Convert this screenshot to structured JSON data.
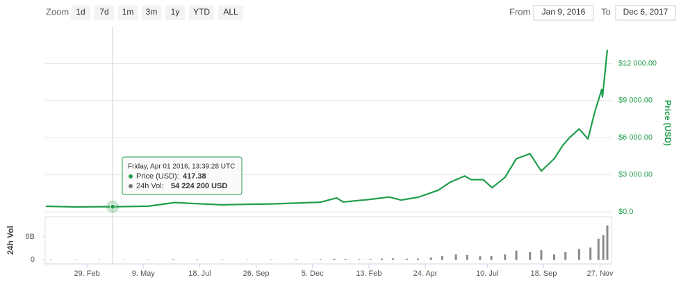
{
  "toolbar": {
    "zoom_label": "Zoom",
    "buttons": [
      "1d",
      "7d",
      "1m",
      "3m",
      "1y",
      "YTD",
      "ALL"
    ],
    "from_label": "From",
    "from": "Jan 9, 2016",
    "to_label": "To",
    "to": "Dec 6, 2017"
  },
  "tooltip": {
    "date": "Friday, Apr 01 2016, 13:39:28 UTC",
    "price_label": "Price (USD):",
    "price": "417.38",
    "vol_label": "24h Vol:",
    "vol": "54 224 200 USD"
  },
  "chart_data": [
    {
      "type": "line",
      "ylabel": "Price (USD)",
      "color": "#1f9d4a",
      "grid": true,
      "x": [
        "2016-01-09",
        "2016-02-15",
        "2016-03-15",
        "2016-04-01",
        "2016-05-15",
        "2016-06-17",
        "2016-07-15",
        "2016-08-15",
        "2016-09-15",
        "2016-10-15",
        "2016-11-15",
        "2016-12-15",
        "2017-01-04",
        "2017-01-12",
        "2017-02-15",
        "2017-03-10",
        "2017-03-25",
        "2017-04-15",
        "2017-05-10",
        "2017-05-25",
        "2017-06-12",
        "2017-06-20",
        "2017-07-05",
        "2017-07-16",
        "2017-08-01",
        "2017-08-15",
        "2017-09-01",
        "2017-09-15",
        "2017-10-01",
        "2017-10-12",
        "2017-10-20",
        "2017-11-01",
        "2017-11-12",
        "2017-11-20",
        "2017-11-29",
        "2017-11-30",
        "2017-12-06"
      ],
      "values": [
        450,
        400,
        415,
        417.38,
        455,
        750,
        660,
        570,
        610,
        640,
        710,
        780,
        1130,
        800,
        1010,
        1200,
        950,
        1180,
        1750,
        2400,
        2900,
        2600,
        2600,
        1950,
        2800,
        4300,
        4700,
        3300,
        4300,
        5400,
        6000,
        6700,
        5900,
        8000,
        9900,
        9300,
        13100
      ],
      "xlim": [
        "2016-01-09",
        "2017-12-06"
      ],
      "xticks": [
        {
          "value": "2016-02-29",
          "label": "29. Feb"
        },
        {
          "value": "2016-05-09",
          "label": "9. May"
        },
        {
          "value": "2016-07-18",
          "label": "18. Jul"
        },
        {
          "value": "2016-09-26",
          "label": "26. Sep"
        },
        {
          "value": "2016-12-05",
          "label": "5. Dec"
        },
        {
          "value": "2017-02-13",
          "label": "13. Feb"
        },
        {
          "value": "2017-04-24",
          "label": "24. Apr"
        },
        {
          "value": "2017-07-10",
          "label": "10. Jul"
        },
        {
          "value": "2017-09-18",
          "label": "18. Sep"
        },
        {
          "value": "2017-11-27",
          "label": "27. Nov"
        }
      ],
      "ylim": [
        0,
        15000
      ],
      "yticks": [
        {
          "value": 0,
          "label": "$0.0"
        },
        {
          "value": 3000,
          "label": "$3 000.00"
        },
        {
          "value": 6000,
          "label": "$6 000.00"
        },
        {
          "value": 9000,
          "label": "$9 000.00"
        },
        {
          "value": 12000,
          "label": "$12 000.00"
        }
      ]
    },
    {
      "type": "bar",
      "ylabel": "24h Vol",
      "color": "#8a8a8a",
      "x": [
        "2016-01-15",
        "2016-02-15",
        "2016-03-15",
        "2016-04-15",
        "2016-05-15",
        "2016-06-15",
        "2016-07-15",
        "2016-08-15",
        "2016-09-15",
        "2016-10-15",
        "2016-11-15",
        "2016-12-15",
        "2017-01-01",
        "2017-01-15",
        "2017-02-01",
        "2017-02-15",
        "2017-03-01",
        "2017-03-15",
        "2017-04-01",
        "2017-04-15",
        "2017-05-01",
        "2017-05-15",
        "2017-06-01",
        "2017-06-15",
        "2017-07-01",
        "2017-07-15",
        "2017-08-01",
        "2017-08-15",
        "2017-09-01",
        "2017-09-15",
        "2017-10-01",
        "2017-10-15",
        "2017-11-01",
        "2017-11-15",
        "2017-11-25",
        "2017-12-01",
        "2017-12-06"
      ],
      "values": [
        70000000,
        60000000,
        50000000,
        50000000,
        60000000,
        120000000,
        100000000,
        70000000,
        60000000,
        70000000,
        100000000,
        120000000,
        250000000,
        150000000,
        120000000,
        140000000,
        300000000,
        350000000,
        250000000,
        300000000,
        600000000,
        1000000000,
        1400000000,
        1300000000,
        900000000,
        1000000000,
        1400000000,
        2400000000,
        2000000000,
        2500000000,
        1400000000,
        2000000000,
        2800000000,
        3200000000,
        5500000000,
        6500000000,
        9000000000
      ],
      "ylim": [
        0,
        12000000000
      ],
      "yticks": [
        0,
        {
          "value": 6000000000,
          "label": "6B"
        }
      ]
    }
  ]
}
